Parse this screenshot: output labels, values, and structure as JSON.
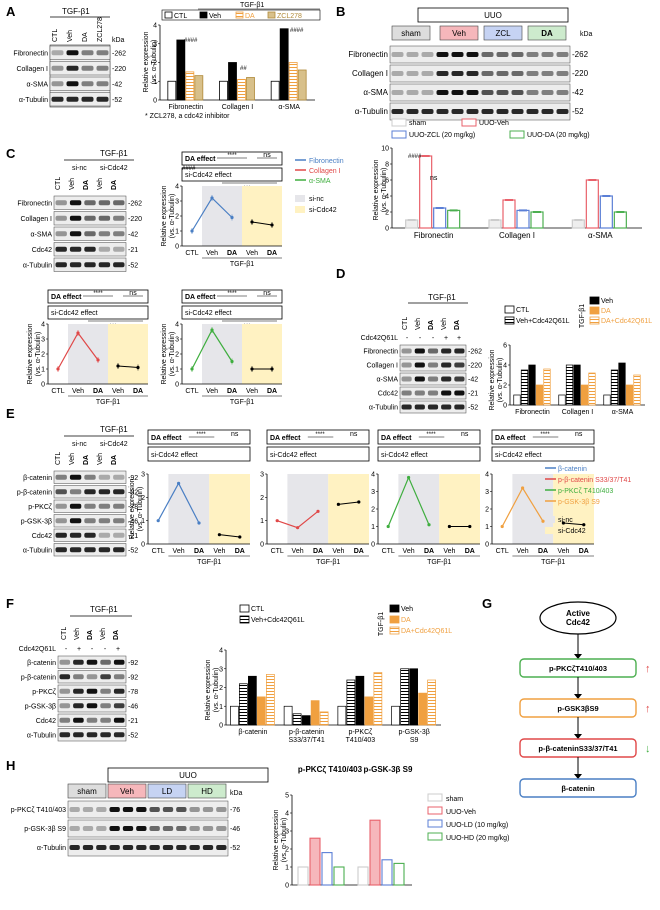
{
  "panels": {
    "A": {
      "letter": "A",
      "treatment": "TGF-β1",
      "lanes": [
        "CTL",
        "Veh",
        "DA",
        "ZCL278"
      ],
      "blot_labels": [
        "Fibronectin",
        "Collagen I",
        "α-SMA",
        "α-Tubulin"
      ],
      "kda": [
        "262",
        "220",
        "42",
        "52"
      ],
      "kda_unit": "kDa",
      "legend": [
        "CTL",
        "Veh",
        "DA",
        "ZCL278"
      ],
      "legend_header": "TGF-β1",
      "ylabel": "Relative expression\n(vs. α-Tubulin)",
      "note": "* ZCL278, a cdc42 inhibitor",
      "categories": [
        "Fibronectin",
        "Collagen I",
        "α-SMA"
      ]
    },
    "B": {
      "letter": "B",
      "header": "UUO",
      "lanes": [
        "sham",
        "Veh",
        "ZCL",
        "DA"
      ],
      "blot_labels": [
        "Fibronectin",
        "Collagen I",
        "α-SMA",
        "α-Tubulin"
      ],
      "kda": [
        "262",
        "220",
        "42",
        "52"
      ],
      "kda_unit": "kDa",
      "legend": [
        "sham",
        "UUO-Veh",
        "UUO-ZCL (20 mg/kg)",
        "UUO-DA (20 mg/kg)"
      ],
      "ylabel": "Relative expression\n(vs. α-Tubulin)",
      "categories": [
        "Fibronectin",
        "Collagen I",
        "α-SMA"
      ],
      "sig": [
        "####",
        "ns",
        "****",
        "####",
        "####",
        "****",
        "****"
      ]
    },
    "C": {
      "letter": "C",
      "treatment": "TGF-β1",
      "groups": [
        "si-nc",
        "si-Cdc42"
      ],
      "lanes": [
        "CTL",
        "Veh",
        "DA",
        "Veh",
        "DA"
      ],
      "blot_labels": [
        "Fibronectin",
        "Collagen I",
        "α-SMA",
        "Cdc42",
        "α-Tubulin"
      ],
      "kda": [
        "262",
        "220",
        "42",
        "21",
        "52"
      ],
      "legend": [
        "Fibronectin",
        "Collagen I",
        "α-SMA",
        "si-nc",
        "si-Cdc42"
      ],
      "da_effect": "DA effect",
      "cdc_effect": "si-Cdc42 effect",
      "ns": "ns",
      "stars": "****",
      "stars3": "***",
      "xlabels": [
        "CTL",
        "Veh",
        "DA",
        "Veh",
        "DA"
      ],
      "xgroup": "TGF-β1",
      "ylabel": "Relative expression\n(vs. α-Tubulin)",
      "sig": "####"
    },
    "D": {
      "letter": "D",
      "treatment": "TGF-β1",
      "row_label": "Cdc42Q61L",
      "signs": [
        "-",
        "-",
        "-",
        "+",
        "+"
      ],
      "lanes": [
        "CTL",
        "Veh",
        "DA",
        "Veh",
        "DA"
      ],
      "blot_labels": [
        "Fibronectin",
        "Collagen I",
        "α-SMA",
        "Cdc42",
        "α-Tubulin"
      ],
      "kda": [
        "262",
        "220",
        "42",
        "21",
        "52"
      ],
      "legend": [
        "CTL",
        "Veh+Cdc42Q61L",
        "Veh",
        "DA",
        "DA+Cdc42Q61L"
      ],
      "legend_header": "TGF-β1",
      "ylabel": "Relative expression\n(vs. α-Tubulin)",
      "categories": [
        "Fibronectin",
        "Collagen I",
        "α-SMA"
      ]
    },
    "E": {
      "letter": "E",
      "treatment": "TGF-β1",
      "groups": [
        "si-nc",
        "si-Cdc42"
      ],
      "lanes": [
        "CTL",
        "Veh",
        "DA",
        "Veh",
        "DA"
      ],
      "blot_labels": [
        "β-catenin",
        "p-β-catenin",
        "p-PKCζ",
        "p-GSK-3β",
        "Cdc42",
        "α-Tubulin"
      ],
      "kda": [
        "92",
        "92",
        "78",
        "46",
        "21",
        "52"
      ],
      "legend": [
        "β-catenin",
        "p-β-catenin S33/37/T41",
        "p-PKCζ T410/403",
        "p-GSK-3β S9",
        "si-nc",
        "si-Cdc42"
      ],
      "da_effect": "DA effect",
      "cdc_effect": "si-Cdc42 effect",
      "xgroup": "TGF-β1",
      "ylabel": "Relative expression\n(vs. α-Tubulin)"
    },
    "F": {
      "letter": "F",
      "treatment": "TGF-β1",
      "row_label": "Cdc42Q61L",
      "lanes": [
        "CTL",
        "Veh",
        "DA",
        "Veh",
        "DA"
      ],
      "blot_labels": [
        "β-catenin",
        "p-β-catenin",
        "p-PKCζ",
        "p-GSK-3β",
        "Cdc42",
        "α-Tubulin"
      ],
      "kda": [
        "92",
        "92",
        "78",
        "46",
        "21",
        "52"
      ],
      "legend": [
        "CTL",
        "Veh+Cdc42Q61L",
        "Veh",
        "DA",
        "DA+Cdc42Q61L"
      ],
      "legend_header": "TGF-β1",
      "ylabel": "Relative expression\n(vs. α-Tubulin)",
      "categories": [
        "β-catenin",
        "p-β-catenin\nS33/37/T41",
        "p-PKCζ\nT410/403",
        "p-GSK-3β\nS9"
      ]
    },
    "G": {
      "letter": "G",
      "start": "Active\nCdc42",
      "steps": [
        "p-PKCζT410/403",
        "p-GSK3βS9",
        "p-β-cateninS33/37/T41",
        "β-catenin"
      ],
      "arrows": [
        "↑",
        "↑",
        "↓"
      ]
    },
    "H": {
      "letter": "H",
      "header": "UUO",
      "lanes": [
        "sham",
        "Veh",
        "LD",
        "HD"
      ],
      "blot_labels": [
        "p-PKCζ T410/403",
        "p-GSK-3β S9",
        "α-Tubulin"
      ],
      "kda": [
        "76",
        "46",
        "52"
      ],
      "kda_unit": "kDa",
      "chart_titles": [
        "p-PKCζ T410/403",
        "p-GSK-3β S9"
      ],
      "legend": [
        "sham",
        "UUO-Veh",
        "UUO-LD (10 mg/kg)",
        "UUO-HD (20 mg/kg)"
      ],
      "ylabel": "Relative expression\n(vs. α-Tubulin)"
    }
  },
  "colors": {
    "veh_red": "#e8616b",
    "da_orange": "#f0a040",
    "zcl_blue": "#5b7fd6",
    "da_green": "#4caf50",
    "light_yellow": "#fff2c2",
    "light_gray": "#e6e6ea"
  },
  "chart_data": [
    {
      "type": "bar",
      "panel": "A",
      "categories": [
        "Fibronectin",
        "Collagen I",
        "α-SMA"
      ],
      "series": [
        {
          "name": "CTL",
          "values": [
            1.0,
            1.0,
            1.0
          ]
        },
        {
          "name": "Veh",
          "values": [
            3.2,
            2.0,
            3.8
          ]
        },
        {
          "name": "DA",
          "values": [
            1.5,
            1.1,
            2.0
          ]
        },
        {
          "name": "ZCL278",
          "values": [
            1.3,
            1.2,
            1.6
          ]
        }
      ],
      "ylim": [
        0,
        4
      ]
    },
    {
      "type": "bar",
      "panel": "B",
      "categories": [
        "Fibronectin",
        "Collagen I",
        "α-SMA"
      ],
      "series": [
        {
          "name": "sham",
          "values": [
            1.0,
            1.0,
            1.0
          ]
        },
        {
          "name": "UUO-Veh",
          "values": [
            9.0,
            3.5,
            6.0
          ]
        },
        {
          "name": "UUO-ZCL (20 mg/kg)",
          "values": [
            2.5,
            2.2,
            4.0
          ]
        },
        {
          "name": "UUO-DA (20 mg/kg)",
          "values": [
            2.2,
            2.0,
            2.0
          ]
        }
      ],
      "ylim": [
        0,
        10
      ]
    },
    {
      "type": "line",
      "panel": "C",
      "x": [
        "CTL",
        "Veh",
        "DA",
        "Veh",
        "DA"
      ],
      "series": [
        {
          "name": "Fibronectin",
          "values": [
            1.0,
            3.2,
            1.9,
            1.6,
            1.4
          ]
        },
        {
          "name": "Collagen I",
          "values": [
            1.0,
            3.4,
            1.6,
            1.2,
            1.1
          ]
        },
        {
          "name": "α-SMA",
          "values": [
            1.0,
            3.6,
            1.5,
            1.0,
            1.0
          ]
        }
      ],
      "ylim": [
        0,
        4
      ]
    },
    {
      "type": "bar",
      "panel": "D",
      "categories": [
        "Fibronectin",
        "Collagen I",
        "α-SMA"
      ],
      "series": [
        {
          "name": "CTL",
          "values": [
            1.0,
            1.0,
            1.0
          ]
        },
        {
          "name": "Veh+Cdc42Q61L",
          "values": [
            3.5,
            4.0,
            3.5
          ]
        },
        {
          "name": "Veh",
          "values": [
            4.0,
            4.0,
            4.2
          ]
        },
        {
          "name": "DA",
          "values": [
            2.0,
            2.0,
            2.0
          ]
        },
        {
          "name": "DA+Cdc42Q61L",
          "values": [
            3.6,
            3.2,
            3.0
          ]
        }
      ],
      "ylim": [
        0,
        6
      ]
    },
    {
      "type": "line",
      "panel": "E",
      "x": [
        "CTL",
        "Veh",
        "DA",
        "Veh",
        "DA"
      ],
      "series": [
        {
          "name": "β-catenin",
          "values": [
            1.0,
            2.6,
            0.9,
            0.4,
            0.3
          ]
        },
        {
          "name": "p-β-catenin S33/37/T41",
          "values": [
            1.0,
            0.7,
            1.4,
            1.7,
            1.8
          ]
        },
        {
          "name": "p-PKCζ T410/403",
          "values": [
            1.0,
            3.8,
            1.1,
            1.0,
            1.0
          ]
        },
        {
          "name": "p-GSK-3β S9",
          "values": [
            1.0,
            3.2,
            1.3,
            1.2,
            1.1
          ]
        }
      ],
      "ylim": [
        0,
        4
      ]
    },
    {
      "type": "bar",
      "panel": "F",
      "categories": [
        "β-catenin",
        "p-β-catenin S33/37/T41",
        "p-PKCζ T410/403",
        "p-GSK-3β S9"
      ],
      "series": [
        {
          "name": "CTL",
          "values": [
            1.0,
            1.0,
            1.0,
            1.0
          ]
        },
        {
          "name": "Veh+Cdc42Q61L",
          "values": [
            2.2,
            0.6,
            2.4,
            3.0
          ]
        },
        {
          "name": "Veh",
          "values": [
            2.6,
            0.5,
            2.6,
            3.0
          ]
        },
        {
          "name": "DA",
          "values": [
            1.5,
            1.3,
            1.5,
            1.7
          ]
        },
        {
          "name": "DA+Cdc42Q61L",
          "values": [
            2.7,
            0.7,
            2.8,
            2.4
          ]
        }
      ],
      "ylim": [
        0,
        4
      ]
    },
    {
      "type": "bar",
      "panel": "H",
      "categories": [
        "p-PKCζ T410/403",
        "p-GSK-3β S9"
      ],
      "series": [
        {
          "name": "sham",
          "values": [
            1.0,
            1.0
          ]
        },
        {
          "name": "UUO-Veh",
          "values": [
            2.6,
            3.6
          ]
        },
        {
          "name": "UUO-LD (10 mg/kg)",
          "values": [
            1.8,
            1.4
          ]
        },
        {
          "name": "UUO-HD (20 mg/kg)",
          "values": [
            1.0,
            1.2
          ]
        }
      ],
      "ylim": [
        0,
        5
      ]
    }
  ]
}
